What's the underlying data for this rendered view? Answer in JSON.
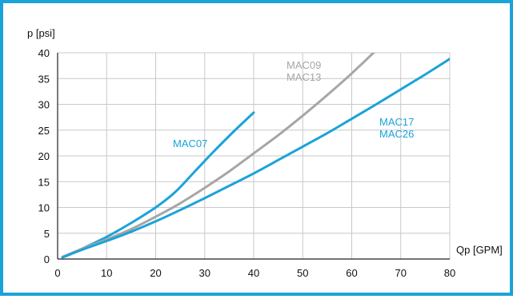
{
  "border_color": "#1aa3d9",
  "chart_data": {
    "type": "line",
    "title": "",
    "xlabel": "Qp [GPM]",
    "ylabel": "p [psi]",
    "xlim": [
      0,
      80
    ],
    "ylim": [
      0,
      40
    ],
    "xticks": [
      0,
      10,
      20,
      30,
      40,
      50,
      60,
      70,
      80
    ],
    "yticks": [
      0,
      5,
      10,
      15,
      20,
      25,
      30,
      35,
      40
    ],
    "grid": true,
    "series": [
      {
        "name": "MAC07",
        "color": "#1aa3d9",
        "label_lines": [
          "MAC07"
        ],
        "points": [
          [
            1,
            0.4
          ],
          [
            5,
            2
          ],
          [
            10,
            4.3
          ],
          [
            15,
            7
          ],
          [
            20,
            10
          ],
          [
            24,
            13
          ],
          [
            28,
            17
          ],
          [
            32,
            21
          ],
          [
            36,
            24.8
          ],
          [
            40,
            28.4
          ]
        ]
      },
      {
        "name": "MAC09 MAC13",
        "color": "#a6a6a6",
        "label_lines": [
          "MAC09",
          "MAC13"
        ],
        "points": [
          [
            1,
            0.4
          ],
          [
            5,
            2
          ],
          [
            10,
            3.8
          ],
          [
            15,
            5.8
          ],
          [
            20,
            8.2
          ],
          [
            25,
            10.8
          ],
          [
            30,
            13.8
          ],
          [
            35,
            17
          ],
          [
            40,
            20.5
          ],
          [
            45,
            24
          ],
          [
            50,
            27.8
          ],
          [
            55,
            31.8
          ],
          [
            60,
            36
          ],
          [
            65,
            40.5
          ]
        ]
      },
      {
        "name": "MAC17 MAC26",
        "color": "#1aa3d9",
        "label_lines": [
          "MAC17",
          "MAC26"
        ],
        "points": [
          [
            1,
            0.3
          ],
          [
            5,
            1.8
          ],
          [
            10,
            3.5
          ],
          [
            15,
            5.3
          ],
          [
            20,
            7.3
          ],
          [
            25,
            9.5
          ],
          [
            30,
            11.8
          ],
          [
            35,
            14.2
          ],
          [
            40,
            16.6
          ],
          [
            45,
            19.2
          ],
          [
            50,
            21.8
          ],
          [
            55,
            24.4
          ],
          [
            60,
            27.2
          ],
          [
            65,
            30
          ],
          [
            70,
            32.9
          ],
          [
            75,
            35.8
          ],
          [
            80,
            38.8
          ]
        ]
      }
    ]
  }
}
